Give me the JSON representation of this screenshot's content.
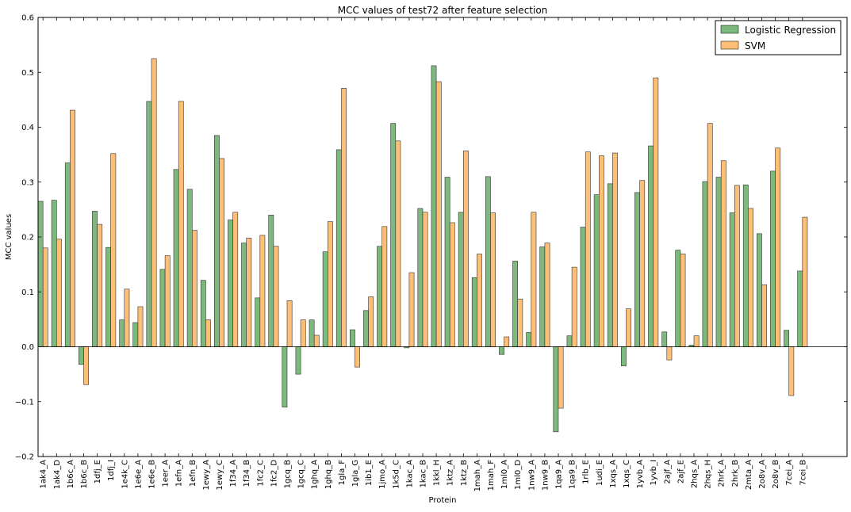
{
  "chart_data": {
    "type": "bar",
    "title": "MCC values of test72 after feature selection",
    "xlabel": "Protein",
    "ylabel": "MCC values",
    "ylim": [
      -0.2,
      0.6
    ],
    "yticks": [
      "−0.2",
      "−0.1",
      "0.0",
      "0.1",
      "0.2",
      "0.3",
      "0.4",
      "0.5",
      "0.6"
    ],
    "grid": false,
    "legend_position": "top-right",
    "categories": [
      "1ak4_A",
      "1ak4_D",
      "1b6c_A",
      "1b6c_B",
      "1dfj_E",
      "1dfj_I",
      "1e4k_C",
      "1e6e_A",
      "1e6e_B",
      "1eer_A",
      "1efn_A",
      "1efn_B",
      "1ewy_A",
      "1ewy_C",
      "1f34_A",
      "1f34_B",
      "1fc2_C",
      "1fc2_D",
      "1gcq_B",
      "1gcq_C",
      "1ghq_A",
      "1ghq_B",
      "1gla_F",
      "1gla_G",
      "1ib1_E",
      "1jmo_A",
      "1k5d_C",
      "1kac_A",
      "1kac_B",
      "1kkl_H",
      "1ktz_A",
      "1ktz_B",
      "1mah_A",
      "1mah_F",
      "1ml0_A",
      "1ml0_D",
      "1nw9_A",
      "1nw9_B",
      "1qa9_A",
      "1qa9_B",
      "1rlb_E",
      "1udi_E",
      "1xqs_A",
      "1xqs_C",
      "1yvb_A",
      "1yvb_I",
      "2ajf_A",
      "2ajf_E",
      "2hqs_A",
      "2hqs_H",
      "2hrk_A",
      "2hrk_B",
      "2mta_A",
      "2o8v_A",
      "2o8v_B",
      "7cei_A",
      "7cei_B"
    ],
    "series": [
      {
        "name": "Logistic Regression",
        "color": "#7db87d",
        "values": [
          0.265,
          0.267,
          0.335,
          -0.032,
          0.247,
          0.181,
          0.049,
          0.044,
          0.447,
          0.141,
          0.323,
          0.287,
          0.121,
          0.385,
          0.231,
          0.189,
          0.089,
          0.24,
          -0.11,
          -0.05,
          0.049,
          0.173,
          0.359,
          0.031,
          0.066,
          0.183,
          0.407,
          -0.002,
          0.252,
          0.512,
          0.309,
          0.245,
          0.126,
          0.31,
          -0.014,
          0.156,
          0.026,
          0.182,
          -0.155,
          0.02,
          0.218,
          0.277,
          0.297,
          -0.035,
          0.281,
          0.366,
          0.027,
          0.176,
          0.003,
          0.301,
          0.309,
          0.244,
          0.295,
          0.206,
          0.32,
          0.03,
          0.138
        ]
      },
      {
        "name": "SVM",
        "color": "#fdbf77",
        "values": [
          0.18,
          0.196,
          0.431,
          -0.069,
          0.223,
          0.352,
          0.105,
          0.073,
          0.525,
          0.166,
          0.447,
          0.212,
          0.049,
          0.343,
          0.245,
          0.198,
          0.203,
          0.183,
          0.084,
          0.049,
          0.021,
          0.228,
          0.471,
          -0.037,
          0.091,
          0.219,
          0.375,
          0.135,
          0.245,
          0.483,
          0.226,
          0.357,
          0.169,
          0.244,
          0.018,
          0.087,
          0.245,
          0.189,
          -0.112,
          0.145,
          0.355,
          0.348,
          0.353,
          0.069,
          0.303,
          0.49,
          -0.024,
          0.169,
          0.02,
          0.407,
          0.339,
          0.294,
          0.252,
          0.113,
          0.362,
          -0.089,
          0.236
        ]
      }
    ]
  }
}
